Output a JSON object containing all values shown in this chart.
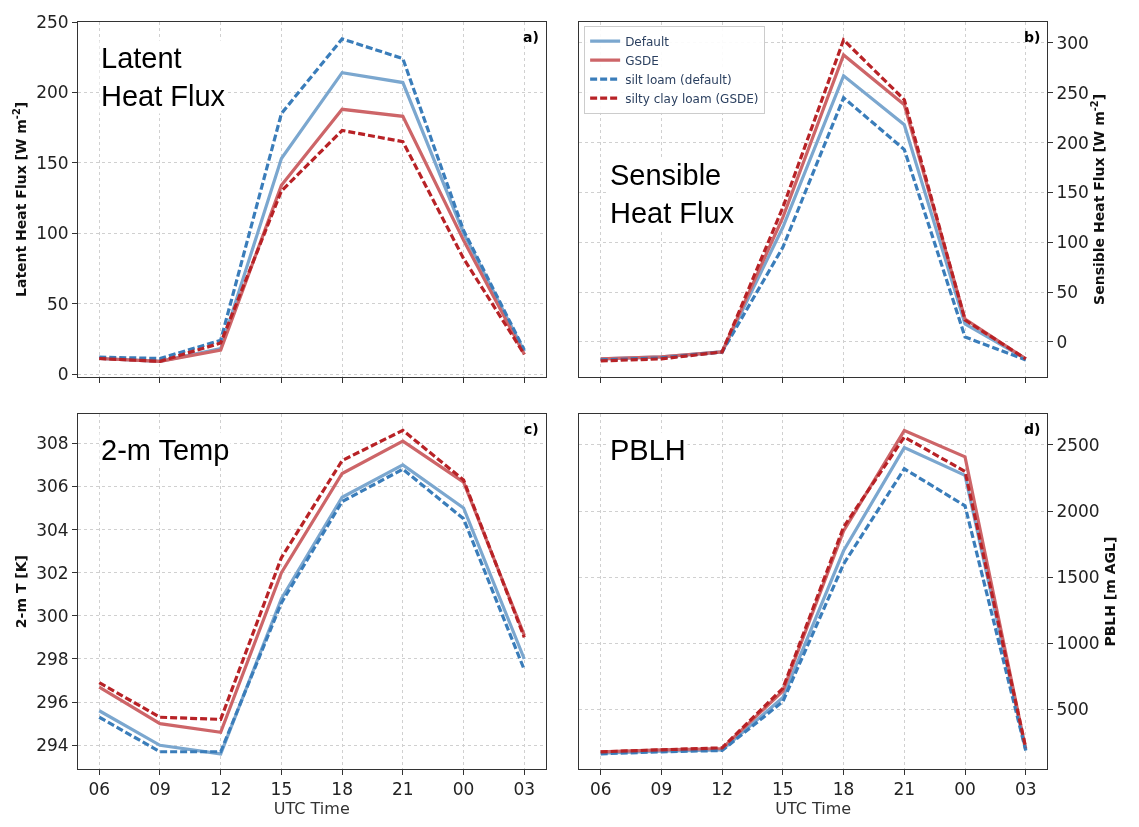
{
  "chart_data": [
    {
      "type": "line",
      "categories": [
        "06",
        "09",
        "12",
        "15",
        "18",
        "21",
        "00",
        "03"
      ],
      "ylabel": "Latent Heat Flux [W m$^{-2}$]",
      "ylim": [
        -2,
        250
      ],
      "yticks": [
        0,
        50,
        100,
        150,
        200,
        250
      ],
      "grid": true,
      "legend": false,
      "tick_labels": "y",
      "annotations": [
        "Latent\nHeat Flux",
        "a)"
      ],
      "series": [
        {
          "color": "#7ba7cf",
          "line_style": "solid",
          "values": [
            11,
            9,
            18,
            153,
            214,
            207,
            100,
            16
          ]
        },
        {
          "color": "#cd6568",
          "line_style": "solid",
          "values": [
            11,
            9,
            17,
            134,
            188,
            183,
            95,
            14
          ]
        },
        {
          "color": "#3a7dba",
          "line_style": "dashed",
          "values": [
            12,
            11,
            24,
            185,
            238,
            224,
            102,
            17
          ]
        },
        {
          "color": "#b82226",
          "line_style": "dashed",
          "values": [
            11,
            9,
            22,
            130,
            173,
            165,
            82,
            14
          ]
        }
      ]
    },
    {
      "type": "line",
      "categories": [
        "06",
        "09",
        "12",
        "15",
        "18",
        "21",
        "00",
        "03"
      ],
      "y2label": "Sensible Heat Flux [W m$^{-2}$]",
      "y2lim": [
        -35,
        321
      ],
      "y2ticks": [
        0,
        50,
        100,
        150,
        200,
        250,
        300
      ],
      "grid": true,
      "legend": "top left",
      "tick_labels": "y",
      "annotations": [
        "Sensible\nHeat Flux",
        "b)"
      ],
      "series": [
        {
          "name": "Default",
          "axis": "y2",
          "color": "#7ba7cf",
          "line_style": "solid",
          "values": [
            -17,
            -15,
            -10,
            115,
            267,
            218,
            18,
            -17
          ]
        },
        {
          "name": "GSDE",
          "axis": "y2",
          "color": "#cd6568",
          "line_style": "solid",
          "values": [
            -17,
            -15,
            -10,
            125,
            288,
            238,
            23,
            -17
          ]
        },
        {
          "name": "silt loam (default)",
          "axis": "y2",
          "color": "#3a7dba",
          "line_style": "dashed",
          "values": [
            -18,
            -16,
            -10,
            95,
            245,
            193,
            5,
            -18
          ]
        },
        {
          "name": "silty clay loam (GSDE)",
          "axis": "y2",
          "color": "#b82226",
          "line_style": "dashed",
          "values": [
            -19,
            -17,
            -10,
            135,
            303,
            243,
            22,
            -17
          ]
        }
      ]
    },
    {
      "type": "line",
      "categories": [
        "06",
        "09",
        "12",
        "15",
        "18",
        "21",
        "00",
        "03"
      ],
      "xlabel": "UTC Time",
      "ylabel": "2-m T [K]",
      "ylim": [
        292.9,
        309.35
      ],
      "yticks": [
        294,
        296,
        298,
        300,
        302,
        304,
        306,
        308
      ],
      "grid": true,
      "legend": false,
      "annotations": [
        "2-m Temp",
        "c)"
      ],
      "series": [
        {
          "color": "#7ba7cf",
          "line_style": "solid",
          "values": [
            295.6,
            294.0,
            293.6,
            300.8,
            305.5,
            307.0,
            305.0,
            298.0
          ]
        },
        {
          "color": "#cd6568",
          "line_style": "solid",
          "values": [
            296.7,
            295.0,
            294.6,
            302.0,
            306.6,
            308.1,
            306.2,
            299.1
          ]
        },
        {
          "color": "#3a7dba",
          "line_style": "dashed",
          "values": [
            295.3,
            293.7,
            293.7,
            300.6,
            305.3,
            306.8,
            304.5,
            297.5
          ]
        },
        {
          "color": "#b82226",
          "line_style": "dashed",
          "values": [
            296.9,
            295.3,
            295.2,
            302.7,
            307.2,
            308.6,
            306.3,
            299.0
          ]
        }
      ]
    },
    {
      "type": "line",
      "categories": [
        "06",
        "09",
        "12",
        "15",
        "18",
        "21",
        "00",
        "03"
      ],
      "xlabel": "UTC Time",
      "y2label": "PBLH [m AGL]",
      "y2lim": [
        50,
        2733
      ],
      "y2ticks": [
        500,
        1000,
        1500,
        2000,
        2500
      ],
      "grid": true,
      "legend": false,
      "annotations": [
        "PBLH",
        "d)"
      ],
      "series": [
        {
          "axis": "y2",
          "color": "#7ba7cf",
          "line_style": "solid",
          "values": [
            170,
            185,
            195,
            590,
            1700,
            2480,
            2270,
            190
          ]
        },
        {
          "axis": "y2",
          "color": "#cd6568",
          "line_style": "solid",
          "values": [
            180,
            195,
            205,
            640,
            1850,
            2610,
            2410,
            200
          ]
        },
        {
          "axis": "y2",
          "color": "#3a7dba",
          "line_style": "dashed",
          "values": [
            165,
            180,
            190,
            560,
            1600,
            2320,
            2040,
            190
          ]
        },
        {
          "axis": "y2",
          "color": "#b82226",
          "line_style": "dashed",
          "values": [
            180,
            195,
            210,
            660,
            1880,
            2560,
            2300,
            210
          ]
        }
      ]
    }
  ]
}
